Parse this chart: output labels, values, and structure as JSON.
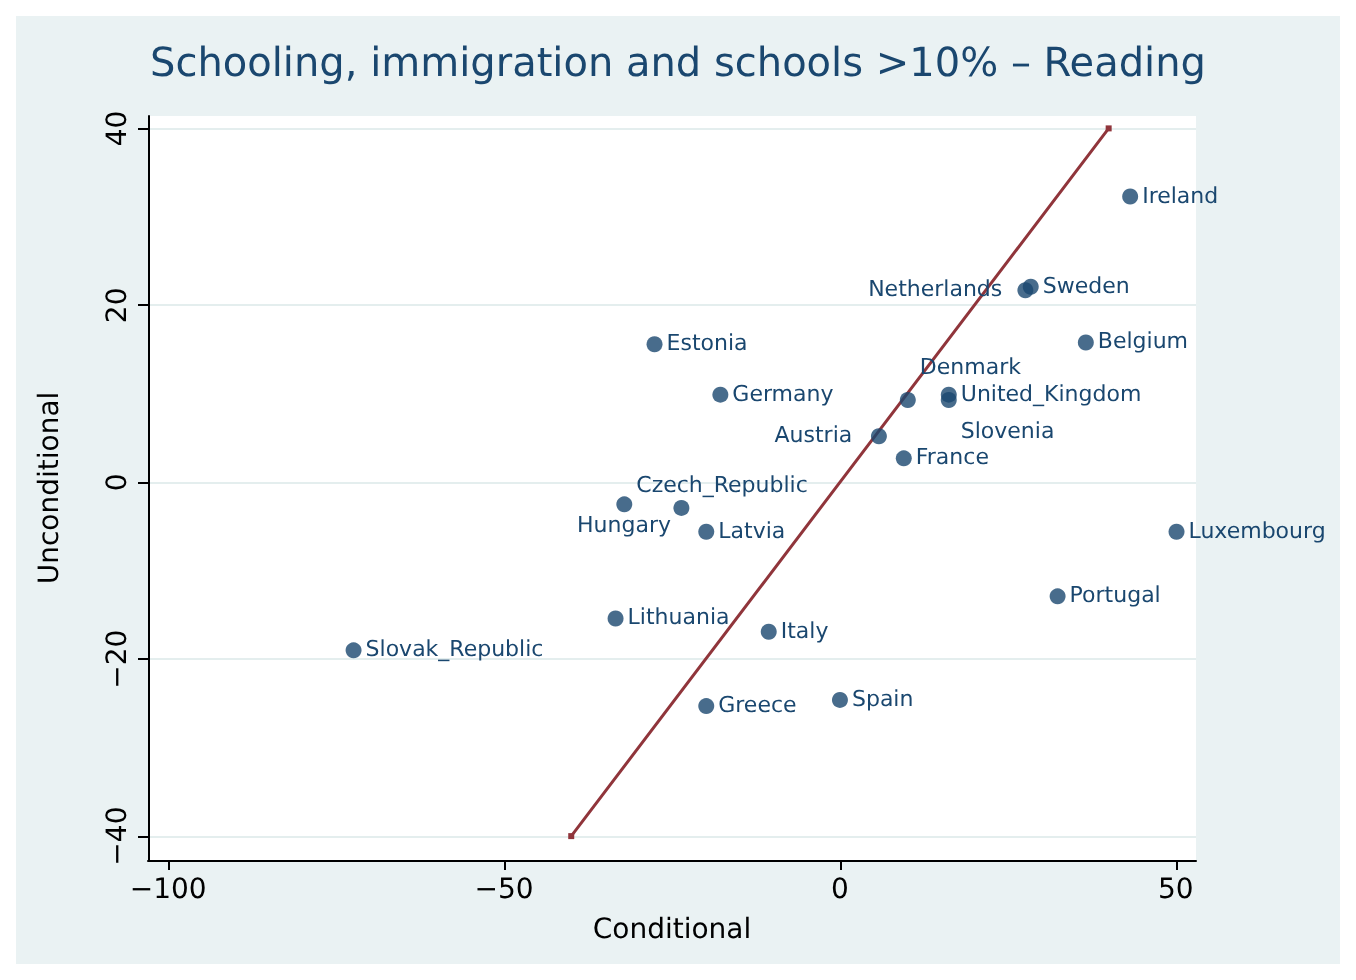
{
  "chart_data": {
    "type": "scatter",
    "title": "Schooling, immigration and schools >10% – Reading",
    "xlabel": "Conditional",
    "ylabel": "Unconditional",
    "xlim": [
      -103,
      53
    ],
    "ylim": [
      -42.7,
      41.4
    ],
    "xticks": [
      -100,
      -50,
      0,
      50
    ],
    "yticks": [
      -40,
      -20,
      0,
      20,
      40
    ],
    "grid": "y",
    "marker": "circle",
    "series": [
      {
        "color": "#1a476f",
        "x": [
          43.2,
          28.4,
          27.6,
          36.6,
          -27.6,
          -17.8,
          10.1,
          16.2,
          16.2,
          5.8,
          9.5,
          -32.1,
          -23.6,
          -19.9,
          50.1,
          32.4,
          -33.4,
          -10.6,
          -72.4,
          0,
          -19.9
        ],
        "values": [
          32.3,
          22.1,
          21.7,
          15.8,
          15.6,
          9.9,
          9.3,
          9.9,
          9.3,
          5.2,
          2.7,
          -2.5,
          -2.9,
          -5.6,
          -5.6,
          -12.9,
          -15.4,
          -16.9,
          -19.0,
          -24.6,
          -25.3
        ]
      },
      {
        "type": "line",
        "color": "#90353b",
        "marker": "square",
        "x": [
          -40,
          40
        ],
        "values": [
          -40,
          40
        ]
      }
    ],
    "annotations": [
      {
        "text": "Ireland",
        "x": 43.2,
        "y": 32.3
      },
      {
        "text": "Sweden",
        "x": 28.4,
        "y": 22.1
      },
      {
        "text": "Netherlands",
        "x": 27.6,
        "y": 21.7
      },
      {
        "text": "Belgium",
        "x": 36.6,
        "y": 15.8
      },
      {
        "text": "Estonia",
        "x": -27.6,
        "y": 15.6
      },
      {
        "text": "Germany",
        "x": -17.8,
        "y": 9.9
      },
      {
        "text": "Denmark",
        "x": 10.1,
        "y": 9.3
      },
      {
        "text": "United_Kingdom",
        "x": 16.2,
        "y": 9.9
      },
      {
        "text": "Slovenia",
        "x": 16.2,
        "y": 9.3
      },
      {
        "text": "Austria",
        "x": 5.8,
        "y": 5.2
      },
      {
        "text": "France",
        "x": 9.5,
        "y": 2.7
      },
      {
        "text": "Czech_Republic",
        "x": -32.1,
        "y": -2.5
      },
      {
        "text": "Hungary",
        "x": -23.6,
        "y": -2.9
      },
      {
        "text": "Latvia",
        "x": -19.9,
        "y": -5.6
      },
      {
        "text": "Luxembourg",
        "x": 50.1,
        "y": -5.6
      },
      {
        "text": "Portugal",
        "x": 32.4,
        "y": -12.9
      },
      {
        "text": "Lithuania",
        "x": -33.4,
        "y": -15.4
      },
      {
        "text": "Italy",
        "x": -10.6,
        "y": -16.9
      },
      {
        "text": "Slovak_Republic",
        "x": -72.4,
        "y": -19.0
      },
      {
        "text": "Spain",
        "x": 0,
        "y": -24.6
      },
      {
        "text": "Greece",
        "x": -19.9,
        "y": -25.3
      }
    ]
  }
}
